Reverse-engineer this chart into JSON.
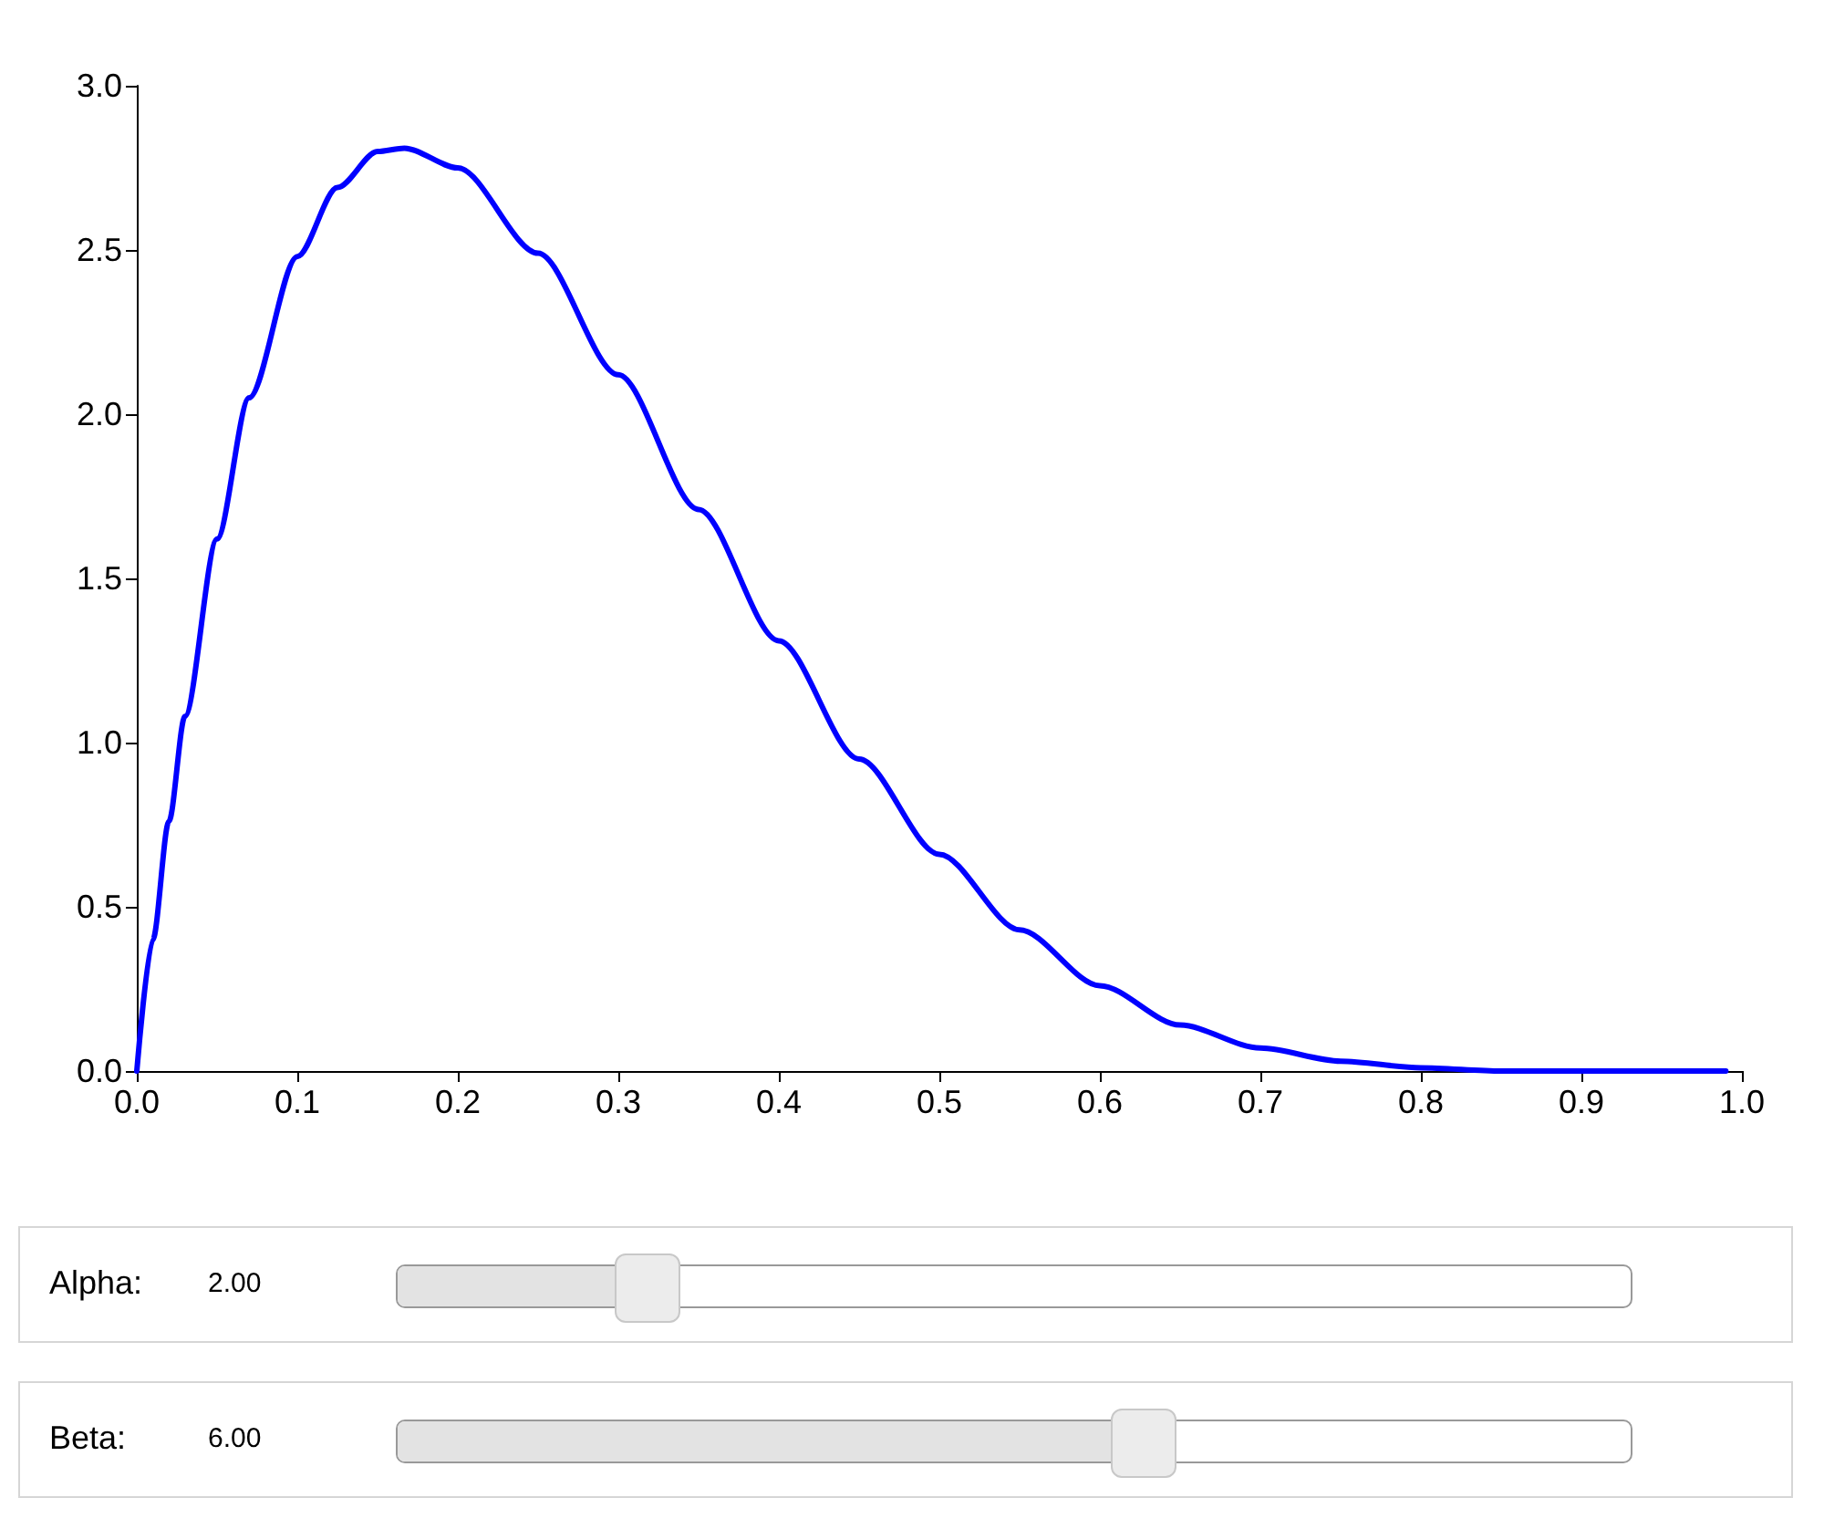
{
  "chart_data": {
    "type": "line",
    "x": [
      0,
      0.01,
      0.02,
      0.03,
      0.05,
      0.07,
      0.1,
      0.125,
      0.15,
      0.1667,
      0.2,
      0.25,
      0.3,
      0.35,
      0.4,
      0.45,
      0.5,
      0.55,
      0.6,
      0.65,
      0.7,
      0.75,
      0.8,
      0.85,
      0.9,
      0.95,
      0.99
    ],
    "series": [
      {
        "color": "#0000ff",
        "values": [
          0,
          0.4,
          0.76,
          1.08,
          1.62,
          2.05,
          2.48,
          2.69,
          2.8,
          2.81,
          2.75,
          2.49,
          2.12,
          1.71,
          1.31,
          0.95,
          0.66,
          0.43,
          0.26,
          0.14,
          0.07,
          0.03,
          0.01,
          0,
          0,
          0,
          0
        ]
      }
    ],
    "xlim": [
      0,
      1
    ],
    "xticks": [
      {
        "value": 0,
        "label": "0.0"
      },
      {
        "value": 0.1,
        "label": "0.1"
      },
      {
        "value": 0.2,
        "label": "0.2"
      },
      {
        "value": 0.3,
        "label": "0.3"
      },
      {
        "value": 0.4,
        "label": "0.4"
      },
      {
        "value": 0.5,
        "label": "0.5"
      },
      {
        "value": 0.6,
        "label": "0.6"
      },
      {
        "value": 0.7,
        "label": "0.7"
      },
      {
        "value": 0.8,
        "label": "0.8"
      },
      {
        "value": 0.9,
        "label": "0.9"
      },
      {
        "value": 1,
        "label": "1.0"
      }
    ],
    "ylim": [
      0,
      3
    ],
    "yticks": [
      {
        "value": 0,
        "label": "0.0"
      },
      {
        "value": 0.5,
        "label": "0.5"
      },
      {
        "value": 1,
        "label": "1.0"
      },
      {
        "value": 1.5,
        "label": "1.5"
      },
      {
        "value": 2,
        "label": "2.0"
      },
      {
        "value": 2.5,
        "label": "2.5"
      },
      {
        "value": 3,
        "label": "3.0"
      }
    ],
    "grid": false,
    "marker": "none",
    "line_style": "solid",
    "annotations": [
      "Alpha:",
      "2.00",
      "Beta:",
      "6.00"
    ]
  }
}
